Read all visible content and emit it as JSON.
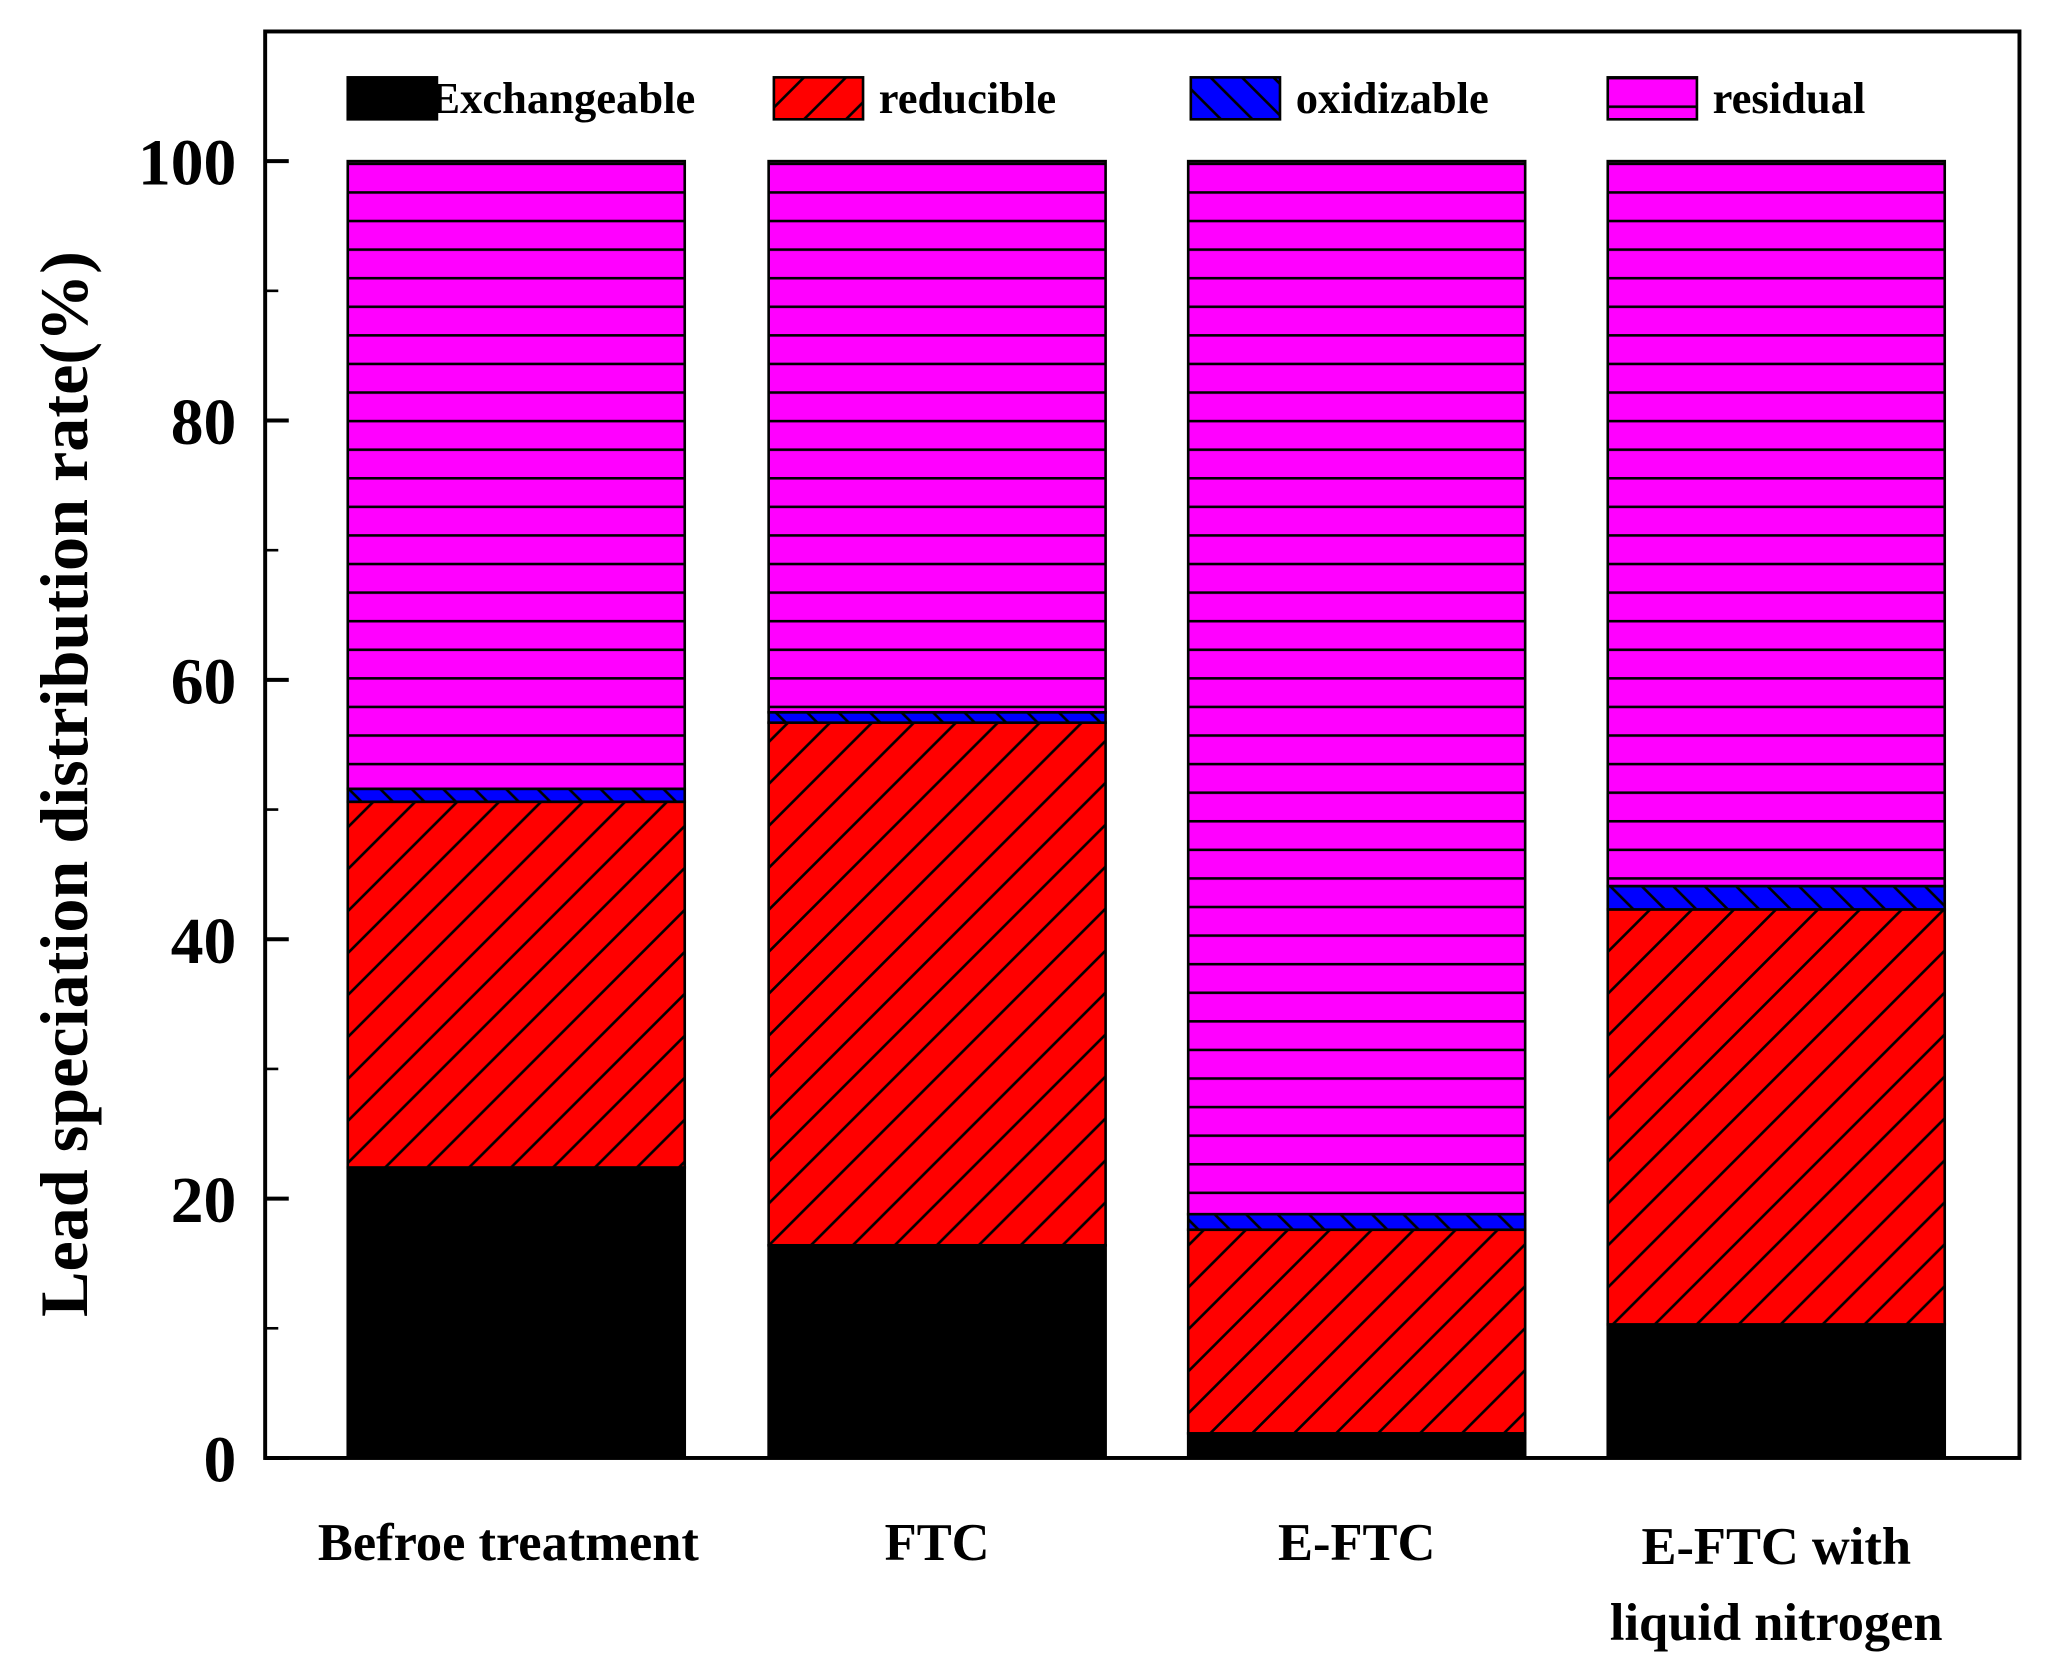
{
  "chart_data": {
    "type": "bar",
    "stacked": true,
    "title": "",
    "xlabel": "",
    "ylabel": "Lead speciation distribution rate(%)",
    "ylim": [
      0,
      110
    ],
    "yticks": [
      0,
      20,
      40,
      60,
      80,
      100
    ],
    "grid": false,
    "legend_position": "top",
    "categories": [
      "Befroe treatment",
      "FTC",
      "E-FTC",
      "E-FTC with liquid nitrogen"
    ],
    "category_lines": [
      [
        "Befroe treatment"
      ],
      [
        "FTC"
      ],
      [
        "E-FTC"
      ],
      [
        "E-FTC with",
        "liquid nitrogen"
      ]
    ],
    "series": [
      {
        "name": "Exchangeable",
        "values": [
          22.4,
          16.4,
          1.9,
          10.3
        ],
        "color": "#000000",
        "pattern": "solid"
      },
      {
        "name": "reducible",
        "values": [
          28.2,
          40.3,
          15.7,
          32.0
        ],
        "color": "#FF0000",
        "pattern": "forward-diagonal"
      },
      {
        "name": "oxidizable",
        "values": [
          1.0,
          0.8,
          1.2,
          1.8
        ],
        "color": "#0000FF",
        "pattern": "backward-diagonal"
      },
      {
        "name": "residual",
        "values": [
          48.4,
          42.5,
          81.2,
          55.9
        ],
        "color": "#FF00FF",
        "pattern": "horizontal"
      }
    ]
  }
}
